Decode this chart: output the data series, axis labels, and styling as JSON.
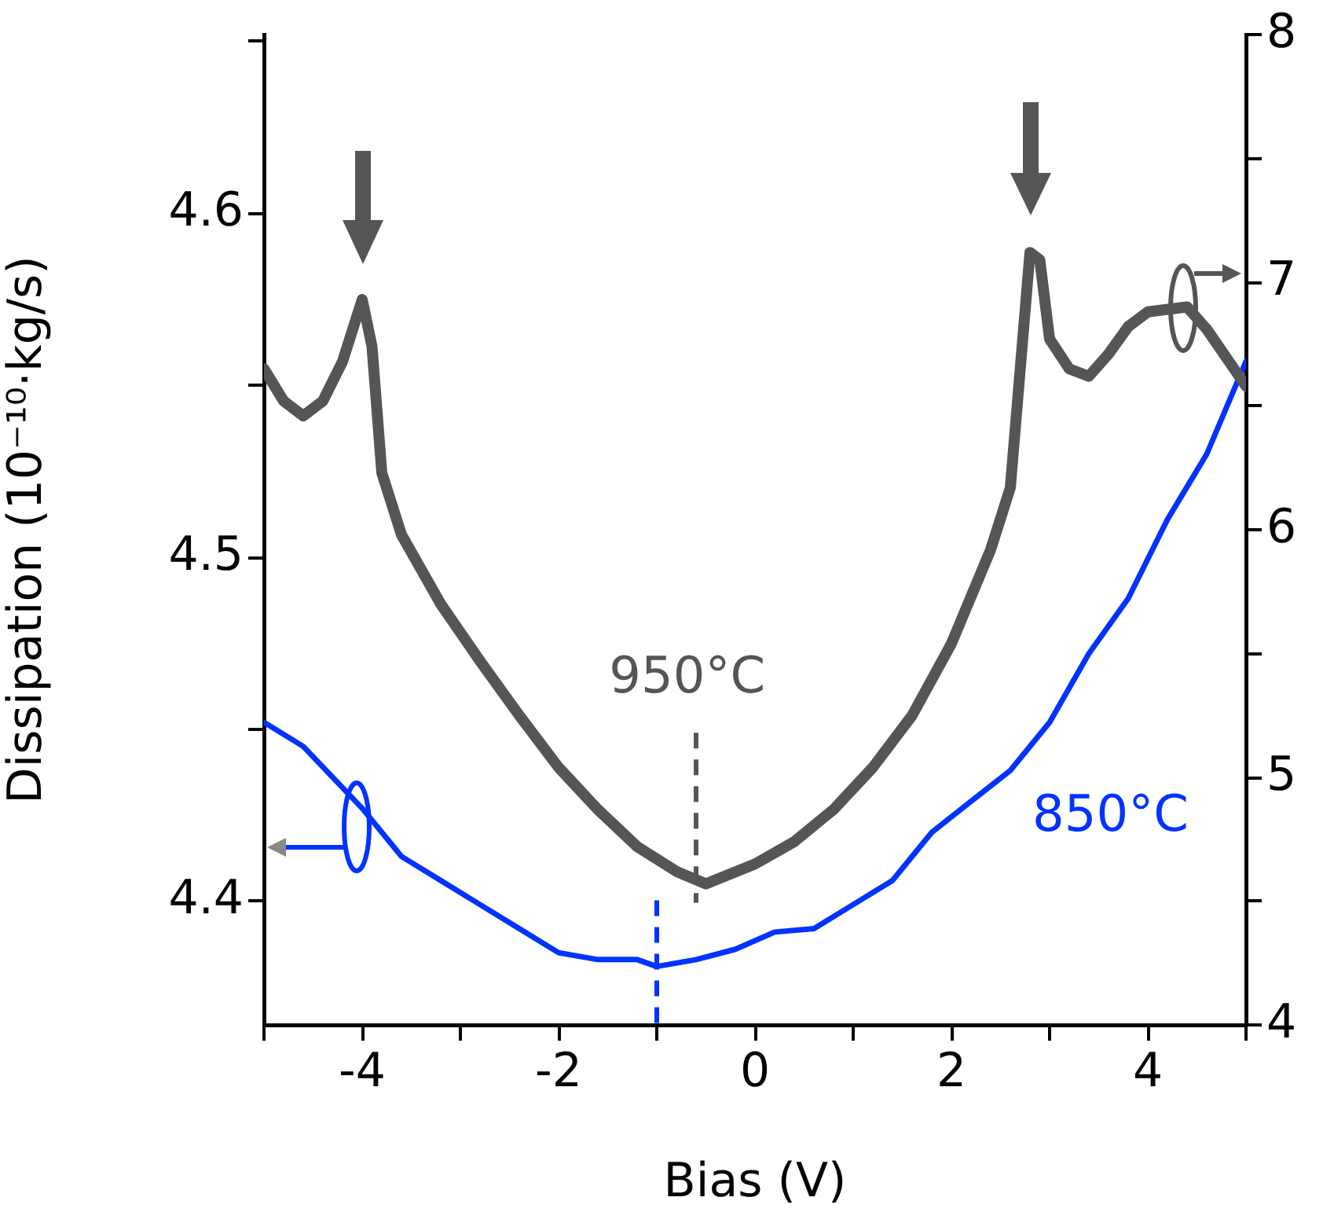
{
  "chart_data": {
    "type": "line",
    "xlabel": "Bias (V)",
    "ylabel": "Dissipation (10⁻¹⁰·kg/s)",
    "xlim": [
      -5,
      5
    ],
    "ylim": [
      4.364,
      4.652
    ],
    "y2lim": [
      4,
      8
    ],
    "xticks": [
      {
        "value": -5,
        "label": null
      },
      -4,
      {
        "value": -3,
        "label": null
      },
      -2,
      {
        "value": -1,
        "label": null
      },
      0,
      {
        "value": 1,
        "label": null
      },
      2,
      {
        "value": 3,
        "label": null
      },
      4,
      {
        "value": 5,
        "label": null
      }
    ],
    "yticks": [
      4.4,
      {
        "value": 4.45,
        "label": null
      },
      4.5,
      {
        "value": 4.55,
        "label": null
      },
      4.6,
      {
        "value": 4.65,
        "label": null
      }
    ],
    "y2ticks": [
      4,
      {
        "value": 4.5,
        "label": null
      },
      5,
      {
        "value": 5.5,
        "label": null
      },
      6,
      {
        "value": 6.5,
        "label": null
      },
      7,
      {
        "value": 7.5,
        "label": null
      },
      8
    ],
    "marker": "none",
    "line_style": "solid",
    "grid": false,
    "legend": false,
    "series": [
      {
        "color": "#555555",
        "axis": "y2",
        "x": [
          -5,
          -4.8,
          -4.6,
          -4.4,
          -4.2,
          -4,
          -3.9,
          -3.8,
          -3.6,
          -3.2,
          -2.8,
          -2.4,
          -2,
          -1.6,
          -1.2,
          -0.8,
          -0.5,
          0,
          0.4,
          0.8,
          1.2,
          1.6,
          2,
          2.4,
          2.6,
          2.8,
          2.9,
          3,
          3.2,
          3.4,
          3.6,
          3.8,
          4,
          4.4,
          4.6,
          5
        ],
        "values": [
          6.65,
          6.52,
          6.46,
          6.52,
          6.68,
          6.93,
          6.74,
          6.23,
          5.98,
          5.7,
          5.47,
          5.25,
          5.04,
          4.87,
          4.72,
          4.62,
          4.57,
          4.65,
          4.74,
          4.87,
          5.04,
          5.25,
          5.54,
          5.92,
          6.17,
          7.12,
          7.09,
          6.77,
          6.65,
          6.62,
          6.71,
          6.82,
          6.88,
          6.9,
          6.81,
          6.58
        ]
      },
      {
        "color": "#0033ff",
        "axis": "y",
        "x": [
          -5,
          -4.6,
          -4.2,
          -4,
          -3.6,
          -3.2,
          -2.8,
          -2.4,
          -2,
          -1.6,
          -1.2,
          -1,
          -0.6,
          -0.2,
          0.2,
          0.6,
          1,
          1.4,
          1.8,
          2.2,
          2.6,
          3,
          3.4,
          3.8,
          4.2,
          4.6,
          5
        ],
        "values": [
          4.452,
          4.445,
          4.433,
          4.427,
          4.413,
          4.406,
          4.399,
          4.392,
          4.385,
          4.383,
          4.383,
          4.381,
          4.383,
          4.386,
          4.391,
          4.392,
          4.399,
          4.406,
          4.42,
          4.429,
          4.438,
          4.452,
          4.472,
          4.488,
          4.511,
          4.53,
          4.557
        ]
      }
    ],
    "ref_lines": [
      {
        "axis": "x",
        "value": -0.6,
        "color": "#555555",
        "line_style": "dashed"
      },
      {
        "axis": "x",
        "value": -1,
        "color": "#0033ff",
        "line_style": "dashed"
      }
    ],
    "annotations": [
      "950°C",
      "850°C"
    ]
  }
}
